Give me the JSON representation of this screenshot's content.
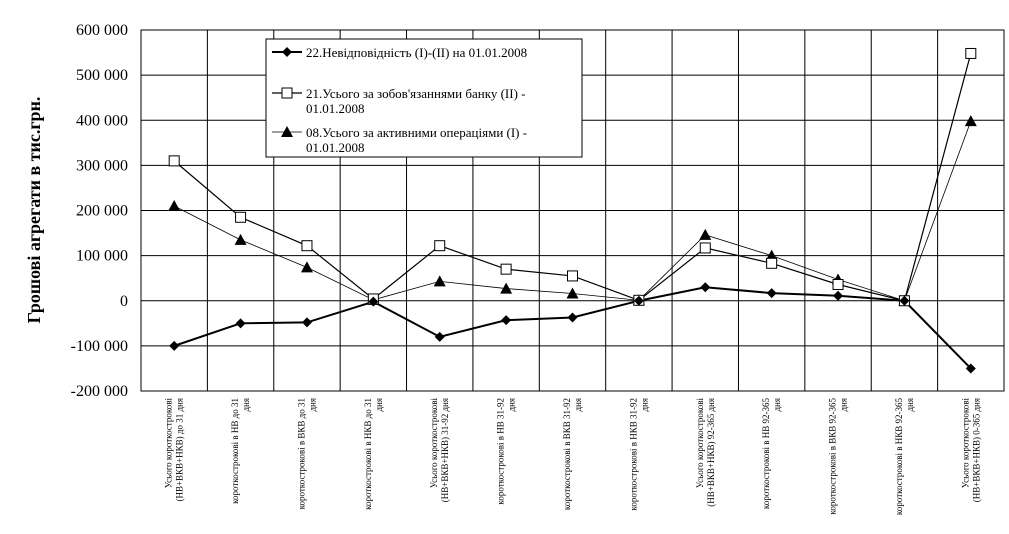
{
  "chart_data": {
    "type": "line",
    "ylabel": "Грошові агрегати в тис.грн.",
    "xlabel": "",
    "ylim": [
      -200000,
      600000
    ],
    "ytick_step": 100000,
    "grid": true,
    "legend_position": "top-center",
    "yticks": [
      "600 000",
      "500 000",
      "400 000",
      "300 000",
      "200 000",
      "100 000",
      "0",
      "-100 000",
      "-200 000"
    ],
    "categories": [
      [
        "Усього короткострокові",
        "(НВ+ВКВ+НКВ) до 31 дня"
      ],
      [
        "короткострокові в НВ до 31",
        "дня"
      ],
      [
        "короткострокові в ВКВ до 31",
        "дня"
      ],
      [
        "короткострокові в НКВ до 31",
        "дня"
      ],
      [
        "Усього короткострокові",
        "(НВ+ВКВ+НКВ) 31-92 дня"
      ],
      [
        "короткострокові в НВ 31-92",
        "дня"
      ],
      [
        "короткострокові в ВКВ 31-92",
        "дня"
      ],
      [
        "короткострокові в НКВ 31-92",
        "дня"
      ],
      [
        "Усього короткострокові",
        "(НВ+ВКВ+НКВ) 92-365 дня"
      ],
      [
        "короткострокові в НВ 92-365",
        "дня"
      ],
      [
        "короткострокові в ВКВ 92-365",
        "дня"
      ],
      [
        "короткострокові в НКВ 92-365",
        "дня"
      ],
      [
        "Усього короткострокові",
        "(НВ+ВКВ+НКВ) 0-365 дня"
      ]
    ],
    "series": [
      {
        "name": "22.Невідповідність (І)-(ІІ) на 01.01.2008",
        "marker": "diamond",
        "values": [
          -100000,
          -50000,
          -48000,
          -2000,
          -80000,
          -43000,
          -37000,
          0,
          30000,
          17000,
          11000,
          0,
          -150000
        ]
      },
      {
        "name": "21.Усього за зобов'язаннями банку (ІІ) - 01.01.2008",
        "marker": "square",
        "values": [
          310000,
          185000,
          122000,
          4000,
          122000,
          70000,
          55000,
          1000,
          117000,
          83000,
          36000,
          0,
          548000
        ]
      },
      {
        "name": "08.Усього за активними операціями (І) - 01.01.2008",
        "marker": "triangle",
        "values": [
          210000,
          135000,
          74000,
          2000,
          43000,
          27000,
          16000,
          1000,
          146000,
          100000,
          47000,
          0,
          398000
        ]
      }
    ]
  },
  "legend": [
    {
      "line1": "22.Невідповідність (І)-(ІІ) на 01.01.2008",
      "line2": ""
    },
    {
      "line1": "21.Усього за зобов'язаннями банку (ІІ) -",
      "line2": "01.01.2008"
    },
    {
      "line1": "08.Усього за активними операціями (І) -",
      "line2": "01.01.2008"
    }
  ]
}
